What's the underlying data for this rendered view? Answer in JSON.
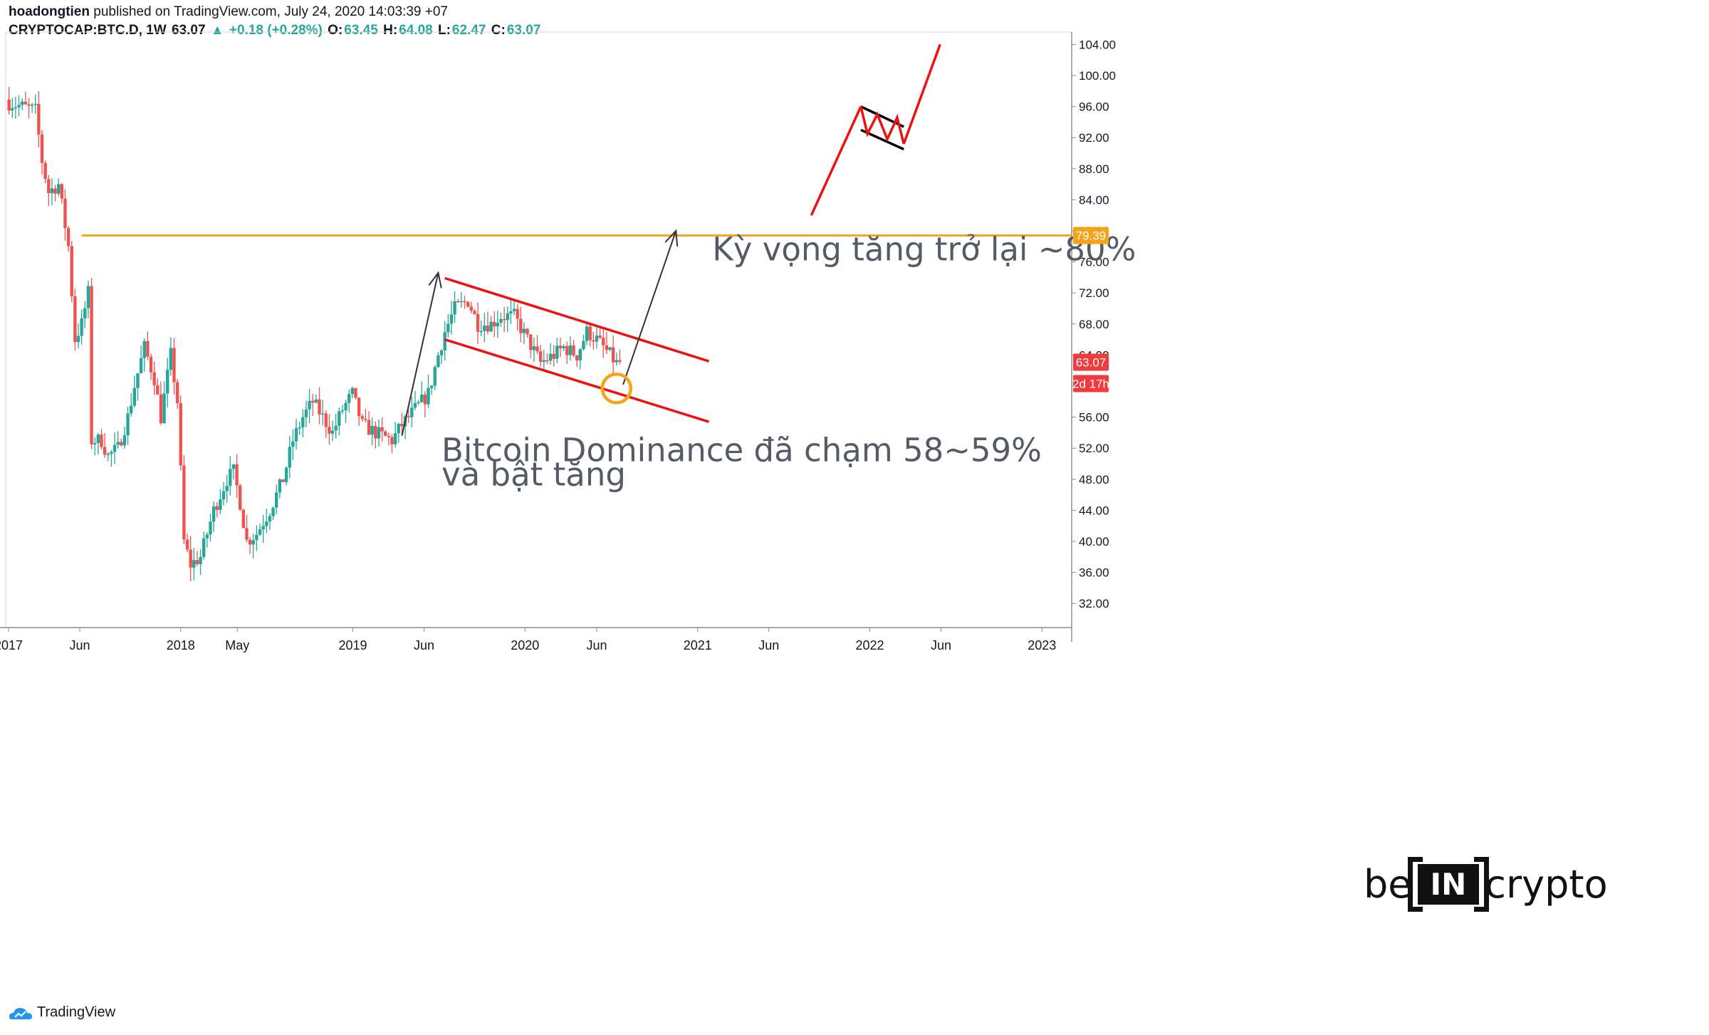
{
  "header": {
    "publisher": "hoadongtien",
    "published_text": "published on TradingView.com, July 24, 2020 14:03:39 +07",
    "symbol": "CRYPTOCAP:BTC.D, 1W",
    "last": "63.07",
    "change": "+0.18 (+0.28%)",
    "open_label": "O:",
    "open": "63.45",
    "high_label": "H:",
    "high": "64.08",
    "low_label": "L:",
    "low": "62.47",
    "close_label": "C:",
    "close": "63.07"
  },
  "footer": {
    "tradingview_label": "TradingView"
  },
  "brand": {
    "left": "be",
    "box": "IN",
    "right": "crypto"
  },
  "colors": {
    "up": "#26a69a",
    "down": "#ef5350",
    "resistance": "#f7a21b",
    "channel": "#ee1111",
    "badge": "#ef3b3b",
    "arrow": "#333333"
  },
  "chart_data": {
    "type": "candlestick",
    "timeframe": "1W",
    "ylim": [
      28.9,
      105.6
    ],
    "xlim": [
      "2016-12-26",
      "2023-03-05"
    ],
    "y_ticks": [
      "32.00",
      "36.00",
      "40.00",
      "44.00",
      "48.00",
      "52.00",
      "56.00",
      "60.00",
      "64.00",
      "68.00",
      "72.00",
      "76.00",
      "80.00",
      "84.00",
      "88.00",
      "92.00",
      "96.00",
      "100.00",
      "104.00"
    ],
    "x_ticks": [
      {
        "label": "2017",
        "date": "2017-01-01"
      },
      {
        "label": "Jun",
        "date": "2017-06-01"
      },
      {
        "label": "2018",
        "date": "2018-01-01"
      },
      {
        "label": "May",
        "date": "2018-05-01"
      },
      {
        "label": "2019",
        "date": "2019-01-01"
      },
      {
        "label": "Jun",
        "date": "2019-06-01"
      },
      {
        "label": "2020",
        "date": "2020-01-01"
      },
      {
        "label": "Jun",
        "date": "2020-06-01"
      },
      {
        "label": "2021",
        "date": "2021-01-01"
      },
      {
        "label": "Jun",
        "date": "2021-06-01"
      },
      {
        "label": "2022",
        "date": "2022-01-01"
      },
      {
        "label": "Jun",
        "date": "2022-06-01"
      },
      {
        "label": "2023",
        "date": "2023-01-01"
      }
    ],
    "anchors": [
      [
        "2017-01-02",
        96.5
      ],
      [
        "2017-02-27",
        95.5
      ],
      [
        "2017-03-13",
        89
      ],
      [
        "2017-03-27",
        85
      ],
      [
        "2017-04-17",
        86
      ],
      [
        "2017-05-08",
        78
      ],
      [
        "2017-05-22",
        66
      ],
      [
        "2017-06-05",
        68
      ],
      [
        "2017-06-19",
        72
      ],
      [
        "2017-06-26",
        53
      ],
      [
        "2017-07-17",
        53
      ],
      [
        "2017-07-31",
        51
      ],
      [
        "2017-08-21",
        52
      ],
      [
        "2017-09-11",
        56
      ],
      [
        "2017-09-25",
        60
      ],
      [
        "2017-10-16",
        65
      ],
      [
        "2017-11-06",
        61
      ],
      [
        "2017-11-20",
        56
      ],
      [
        "2017-12-11",
        64
      ],
      [
        "2017-12-25",
        58
      ],
      [
        "2018-01-08",
        40
      ],
      [
        "2018-01-22",
        37
      ],
      [
        "2018-02-12",
        38
      ],
      [
        "2018-03-12",
        44
      ],
      [
        "2018-04-09",
        48
      ],
      [
        "2018-04-23",
        49
      ],
      [
        "2018-05-07",
        45
      ],
      [
        "2018-05-21",
        40
      ],
      [
        "2018-06-11",
        41
      ],
      [
        "2018-07-09",
        44
      ],
      [
        "2018-08-06",
        48
      ],
      [
        "2018-08-27",
        53
      ],
      [
        "2018-09-17",
        56
      ],
      [
        "2018-10-08",
        58
      ],
      [
        "2018-10-29",
        56
      ],
      [
        "2018-11-19",
        54
      ],
      [
        "2018-12-10",
        57
      ],
      [
        "2018-12-31",
        59
      ],
      [
        "2019-01-21",
        55
      ],
      [
        "2019-02-18",
        54
      ],
      [
        "2019-03-25",
        53
      ],
      [
        "2019-04-15",
        55
      ],
      [
        "2019-05-13",
        57
      ],
      [
        "2019-06-10",
        59
      ],
      [
        "2019-07-01",
        64
      ],
      [
        "2019-07-15",
        67
      ],
      [
        "2019-08-05",
        70
      ],
      [
        "2019-09-02",
        71
      ],
      [
        "2019-09-23",
        68
      ],
      [
        "2019-10-21",
        68
      ],
      [
        "2019-11-11",
        69
      ],
      [
        "2019-12-09",
        69
      ],
      [
        "2020-01-06",
        66
      ],
      [
        "2020-02-03",
        63
      ],
      [
        "2020-03-02",
        64
      ],
      [
        "2020-03-23",
        65
      ],
      [
        "2020-04-20",
        64
      ],
      [
        "2020-05-11",
        67
      ],
      [
        "2020-06-01",
        66
      ],
      [
        "2020-06-29",
        64
      ],
      [
        "2020-07-13",
        62.9
      ],
      [
        "2020-07-20",
        63.07
      ]
    ],
    "resistance": {
      "value": 79.39,
      "from": "2017-06-05",
      "label": "79.39"
    },
    "channel_upper": [
      [
        "2019-07-15",
        73.9
      ],
      [
        "2021-01-25",
        63.2
      ]
    ],
    "channel_lower": [
      [
        "2019-07-15",
        66.0
      ],
      [
        "2021-01-25",
        55.4
      ]
    ],
    "touch_point": {
      "date": "2020-07-13",
      "value": 59.7
    },
    "arrow_up_1": [
      [
        "2019-04-15",
        53.6
      ],
      [
        "2019-07-01",
        74.6
      ]
    ],
    "arrow_up_2": [
      [
        "2020-07-27",
        60.2
      ],
      [
        "2020-11-16",
        80.0
      ]
    ],
    "last_price": {
      "value": 63.07,
      "label": "63.07",
      "countdown": "2d 17h"
    },
    "annotations": [
      {
        "text": "Kỳ vọng tăng trở lại ~80%",
        "date": "2021-02-01",
        "value": 76.2
      },
      {
        "text": "Bitcoin Dominance đã chạm 58~59%",
        "date": "2019-07-08",
        "value": 50.3
      },
      {
        "text": "và bật tăng",
        "date": "2019-07-08",
        "value": 47.2
      }
    ],
    "bull_flag": {
      "pole": [
        [
          "2021-08-30",
          82.0
        ],
        [
          "2021-12-13",
          96.0
        ]
      ],
      "flag_top": [
        [
          "2021-12-13",
          96.0
        ],
        [
          "2022-03-14",
          93.4
        ]
      ],
      "flag_bottom": [
        [
          "2021-12-13",
          93.0
        ],
        [
          "2022-03-14",
          90.5
        ]
      ],
      "zigzag": [
        [
          "2021-12-13",
          96.0
        ],
        [
          "2021-12-27",
          92.5
        ],
        [
          "2022-01-17",
          95.0
        ],
        [
          "2022-02-07",
          91.8
        ],
        [
          "2022-02-28",
          94.6
        ],
        [
          "2022-03-14",
          91.2
        ]
      ],
      "breakout": [
        [
          "2022-03-14",
          91.2
        ],
        [
          "2022-05-30",
          104.0
        ]
      ]
    }
  }
}
